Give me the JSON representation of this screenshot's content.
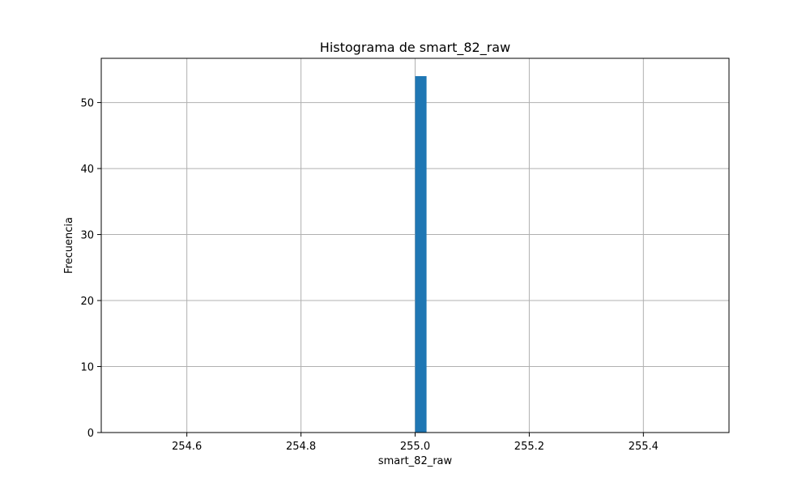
{
  "chart_data": {
    "type": "bar",
    "title": "Histograma de smart_82_raw",
    "xlabel": "smart_82_raw",
    "ylabel": "Frecuencia",
    "xlim": [
      254.45,
      255.55
    ],
    "ylim": [
      0,
      56.7
    ],
    "grid": true,
    "x_ticks": [
      254.6,
      254.8,
      255.0,
      255.2,
      255.4
    ],
    "x_tick_labels": [
      "254.6",
      "254.8",
      "255.0",
      "255.2",
      "255.4"
    ],
    "y_ticks": [
      0,
      10,
      20,
      30,
      40,
      50
    ],
    "y_tick_labels": [
      "0",
      "10",
      "20",
      "30",
      "40",
      "50"
    ],
    "bins": [
      {
        "x0": 255.0,
        "x1": 255.02,
        "count": 54
      }
    ],
    "bar_color": "#1f77b4",
    "grid_color": "#b0b0b0"
  }
}
